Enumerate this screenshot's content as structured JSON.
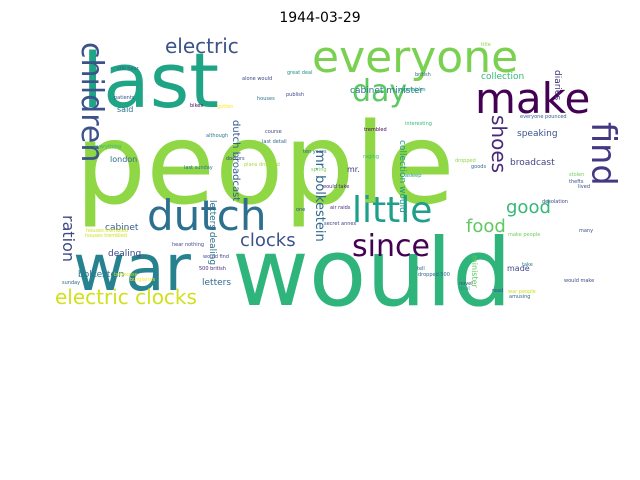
{
  "chart_data": {
    "type": "wordcloud",
    "title": "1944-03-29",
    "colormap": "viridis",
    "words": [
      {
        "text": "people",
        "color": "#8fd744"
      },
      {
        "text": "would",
        "color": "#2fb47c"
      },
      {
        "text": "last",
        "color": "#20a486"
      },
      {
        "text": "war",
        "color": "#26828e"
      },
      {
        "text": "everyone",
        "color": "#7ad151"
      },
      {
        "text": "make",
        "color": "#440154"
      },
      {
        "text": "find",
        "color": "#453781"
      },
      {
        "text": "dutch",
        "color": "#2d708e"
      },
      {
        "text": "children",
        "color": "#3b528b"
      },
      {
        "text": "little",
        "color": "#1f9e89"
      },
      {
        "text": "since",
        "color": "#440154"
      },
      {
        "text": "day",
        "color": "#5ec962"
      },
      {
        "text": "electric",
        "color": "#3b528b"
      },
      {
        "text": "electric clocks",
        "color": "#d0e11c"
      },
      {
        "text": "clocks",
        "color": "#3b528b"
      },
      {
        "text": "shoes",
        "color": "#482878"
      },
      {
        "text": "food",
        "color": "#5ec962"
      },
      {
        "text": "good",
        "color": "#35b779"
      },
      {
        "text": "ration",
        "color": "#3e4989"
      },
      {
        "text": "mr. bolkestein",
        "color": "#31688e"
      },
      {
        "text": "dutch broadcast",
        "color": "#355f8d"
      },
      {
        "text": "cabinet minister",
        "color": "#2a788e"
      },
      {
        "text": "collection would",
        "color": "#1f9a8a"
      },
      {
        "text": "letters dealing",
        "color": "#2c728e"
      },
      {
        "text": "broadcast",
        "color": "#414487"
      },
      {
        "text": "speaking",
        "color": "#3b528b"
      },
      {
        "text": "collection",
        "color": "#35b779"
      },
      {
        "text": "diaries",
        "color": "#46337e"
      },
      {
        "text": "letters",
        "color": "#31688e"
      },
      {
        "text": "dealing",
        "color": "#3e4989"
      },
      {
        "text": "bolkestein",
        "color": "#2a788e"
      },
      {
        "text": "cabinet",
        "color": "#365c8d"
      },
      {
        "text": "london",
        "color": "#31688e"
      },
      {
        "text": "said",
        "color": "#2c728e"
      },
      {
        "text": "made",
        "color": "#3f4788"
      },
      {
        "text": "minister",
        "color": "#5ec962"
      },
      {
        "text": "mr.",
        "color": "#46337e"
      },
      {
        "text": "everything",
        "color": "#35b779"
      },
      {
        "text": "although",
        "color": "#2a788e"
      },
      {
        "text": "last detail",
        "color": "#31688e"
      },
      {
        "text": "course",
        "color": "#3e4989"
      },
      {
        "text": "ten years",
        "color": "#31688e"
      },
      {
        "text": "would take",
        "color": "#472d7b"
      },
      {
        "text": "secret annex",
        "color": "#414487"
      },
      {
        "text": "houses trembled",
        "color": "#cde11d"
      },
      {
        "text": "air raids",
        "color": "#472d7b"
      },
      {
        "text": "dropped 500",
        "color": "#31688e"
      },
      {
        "text": "everyone pounced",
        "color": "#365c8d"
      },
      {
        "text": "would make",
        "color": "#3e4989"
      },
      {
        "text": "desolation",
        "color": "#3e4989"
      },
      {
        "text": "trembled",
        "color": "#440154"
      },
      {
        "text": "raging",
        "color": "#35b779"
      },
      {
        "text": "british",
        "color": "#31688e"
      },
      {
        "text": "vegetables",
        "color": "#1f9e89"
      },
      {
        "text": "title",
        "color": "#8fd744"
      },
      {
        "text": "bookcase",
        "color": "#cde11d"
      },
      {
        "text": "stolen",
        "color": "#6ece58"
      },
      {
        "text": "thefts",
        "color": "#3b528b"
      },
      {
        "text": "lived",
        "color": "#3e4989"
      },
      {
        "text": "many",
        "color": "#3b528b"
      },
      {
        "text": "goods",
        "color": "#31688e"
      },
      {
        "text": "novel",
        "color": "#3e4989"
      },
      {
        "text": "deal",
        "color": "#1f9e89"
      },
      {
        "text": "read",
        "color": "#3e4989"
      },
      {
        "text": "tell",
        "color": "#31688e"
      },
      {
        "text": "take",
        "color": "#26828e"
      },
      {
        "text": "one",
        "color": "#3e4989"
      },
      {
        "text": "hear nothing",
        "color": "#3e4989"
      },
      {
        "text": "500 british",
        "color": "#482878"
      },
      {
        "text": "burglaries",
        "color": "#fde725"
      },
      {
        "text": "plans dropped",
        "color": "#a0da39"
      },
      {
        "text": "last sunday",
        "color": "#2c728e"
      },
      {
        "text": "spring",
        "color": "#73d056"
      },
      {
        "text": "still hear",
        "color": "#31688e"
      },
      {
        "text": "alone would",
        "color": "#3e4989"
      },
      {
        "text": "houses",
        "color": "#2c728e"
      },
      {
        "text": "publish",
        "color": "#3e4989"
      },
      {
        "text": "great deal",
        "color": "#21918c"
      },
      {
        "text": "patients",
        "color": "#3b528b"
      },
      {
        "text": "gotten",
        "color": "#fde725"
      },
      {
        "text": "bikes",
        "color": "#440154"
      },
      {
        "text": "doctors",
        "color": "#3e4989"
      },
      {
        "text": "sunday",
        "color": "#31688e"
      },
      {
        "text": "would find",
        "color": "#3e4989"
      },
      {
        "text": "dropped",
        "color": "#8fd744"
      },
      {
        "text": "interesting",
        "color": "#35b779"
      },
      {
        "text": "asleep",
        "color": "#1f9e89"
      },
      {
        "text": "make people",
        "color": "#6ece58"
      },
      {
        "text": "war people",
        "color": "#cde11d"
      },
      {
        "text": "amusing",
        "color": "#31688e"
      },
      {
        "text": "houses trembled",
        "color": "#cde11d"
      }
    ]
  }
}
